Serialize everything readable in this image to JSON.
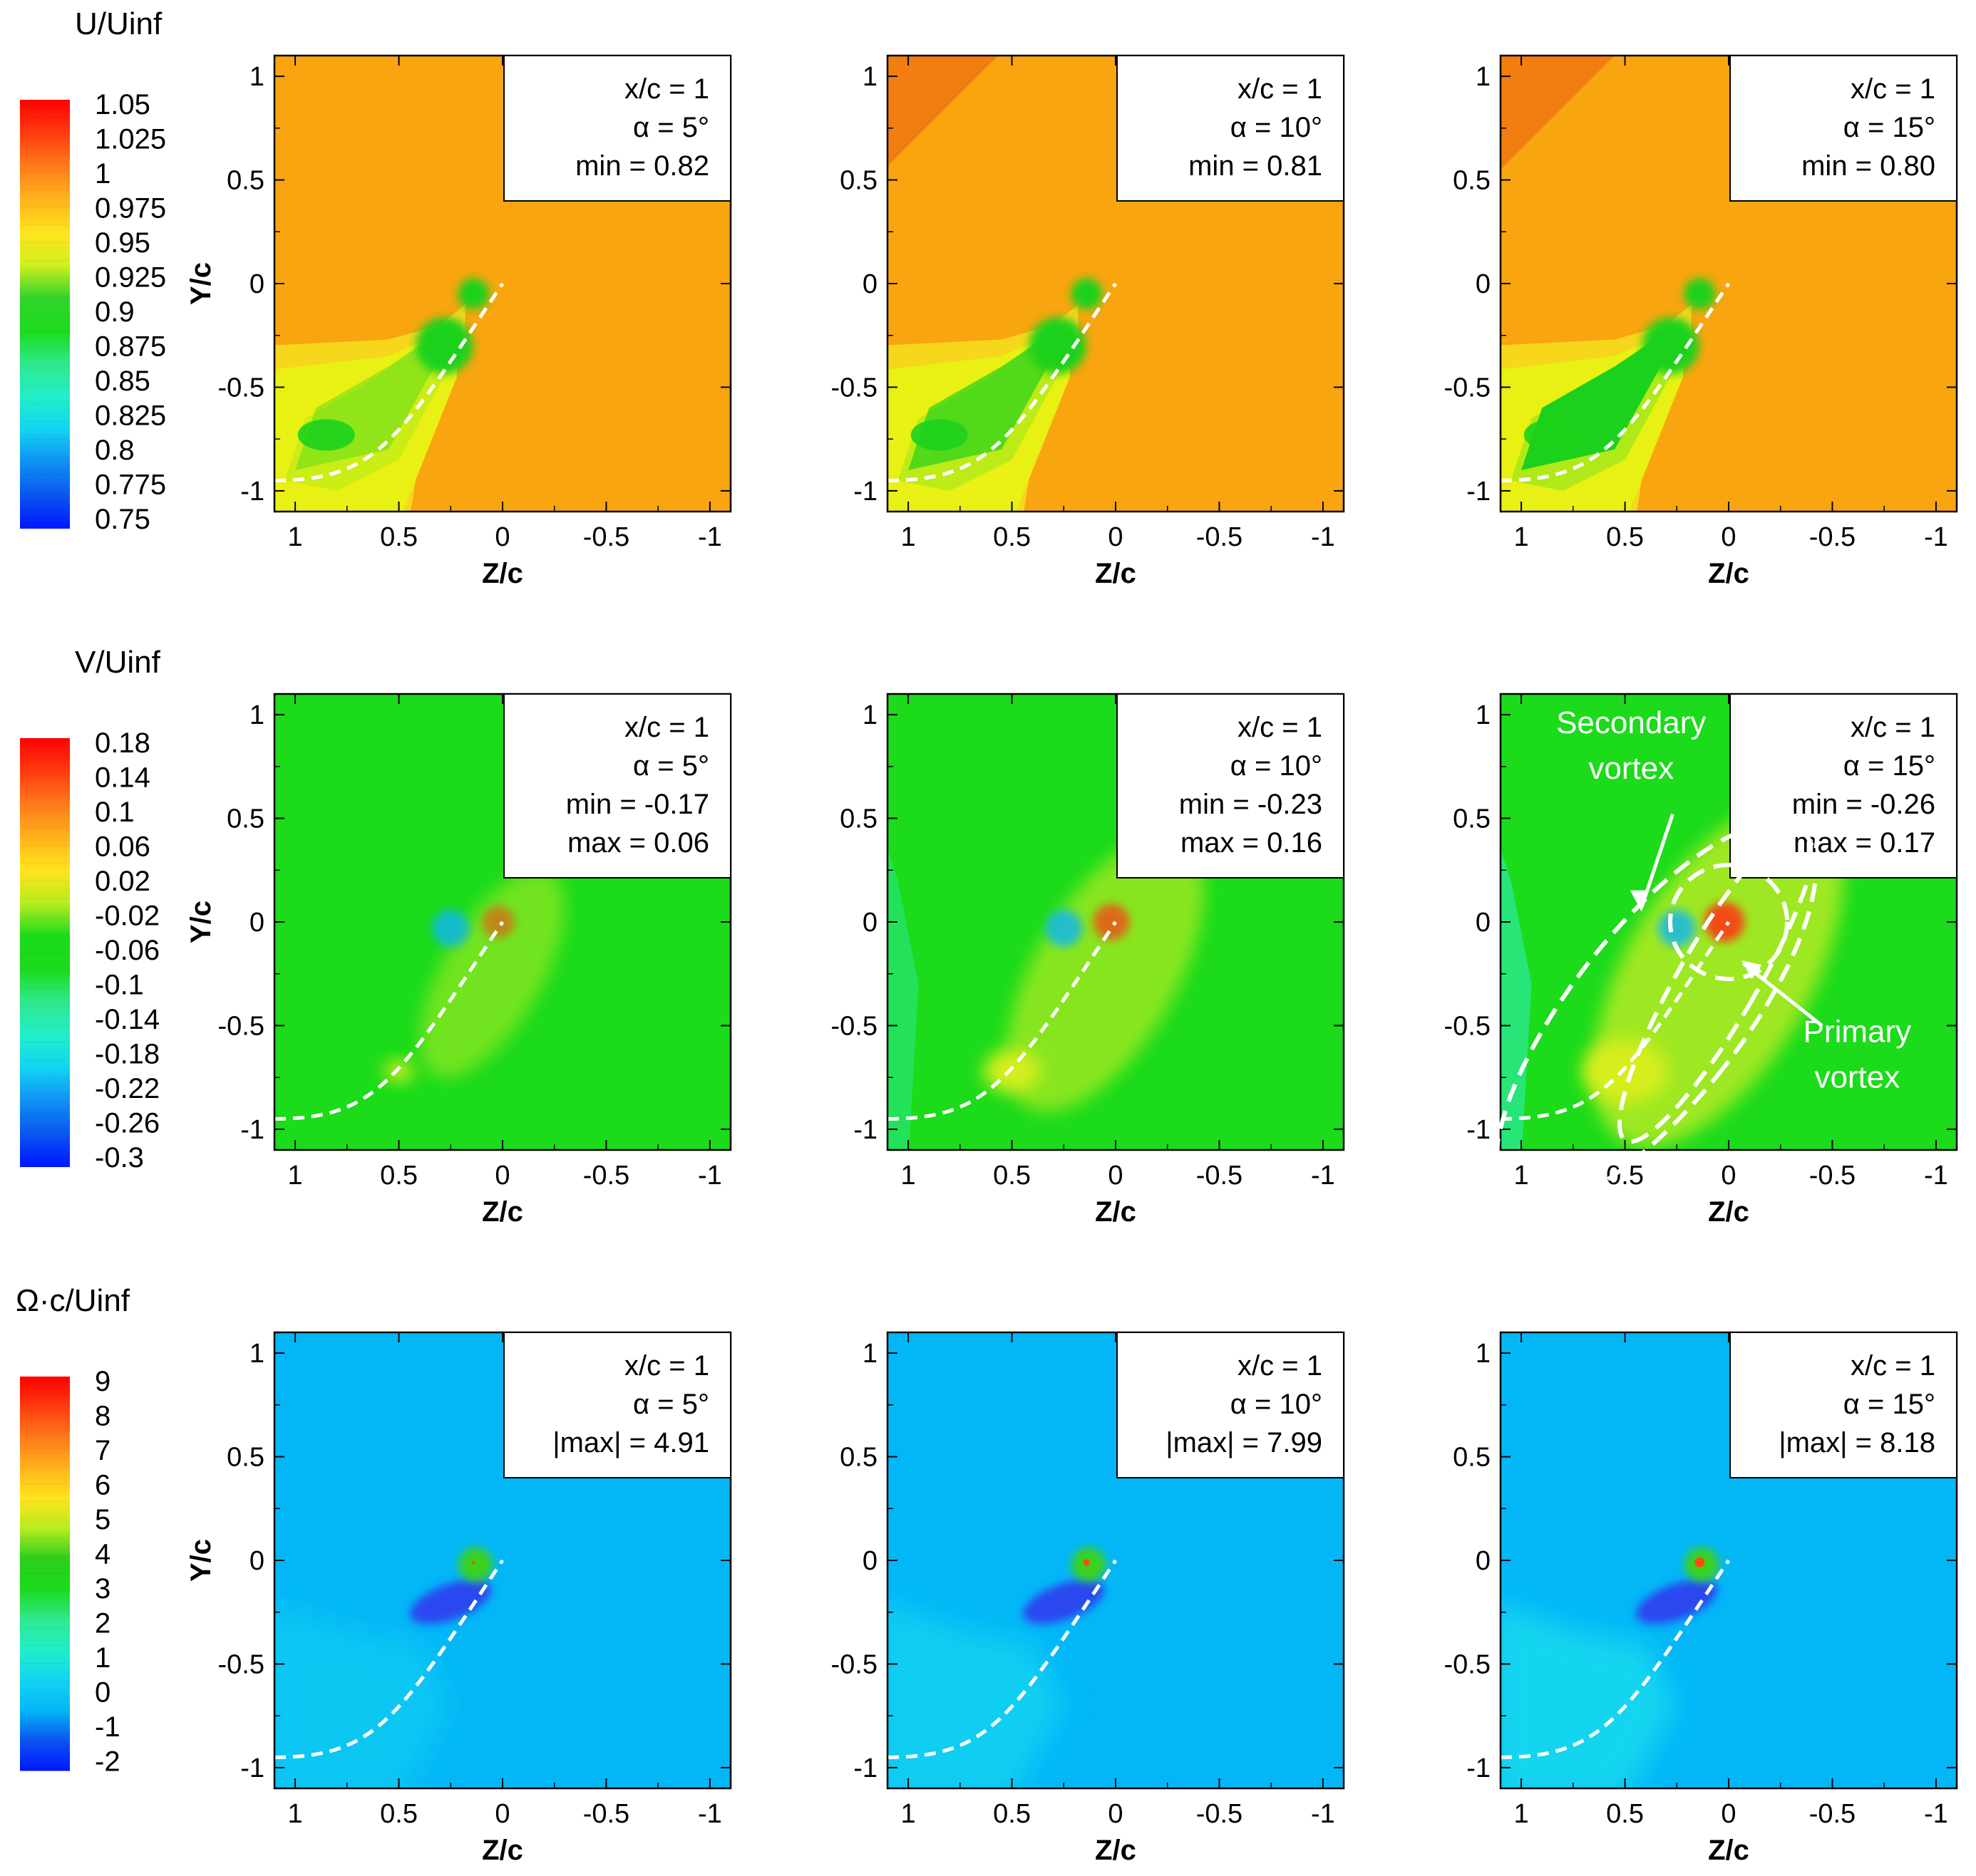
{
  "figure": {
    "rows": 3,
    "cols": 3
  },
  "rows": [
    {
      "variable": "U/Uinf",
      "colorbar_ticks": [
        "1.05",
        "1.025",
        "1",
        "0.975",
        "0.95",
        "0.925",
        "0.9",
        "0.875",
        "0.85",
        "0.825",
        "0.8",
        "0.775",
        "0.75"
      ],
      "colors": {
        "background": "#f9a50f",
        "lower_plume": "#e9f013",
        "core": "#1cd11c",
        "core_light": "#a6e81a",
        "edge": "#f6d71c"
      }
    },
    {
      "variable": "V/Uinf",
      "colorbar_ticks": [
        "0.18",
        "0.14",
        "0.1",
        "0.06",
        "0.02",
        "-0.02",
        "-0.06",
        "-0.1",
        "-0.14",
        "-0.18",
        "-0.22",
        "-0.26",
        "-0.3"
      ],
      "colors": {
        "background": "#1bdb1b",
        "plume": "#9de822",
        "plume_core": "#d6ee1a",
        "side": "#2ee9a0",
        "neg": "#0fb5f5",
        "pos": "#f24c14"
      }
    },
    {
      "variable": "Ω·c/Uinf",
      "colorbar_ticks": [
        "9",
        "8",
        "7",
        "6",
        "5",
        "4",
        "3",
        "2",
        "1",
        "0",
        "-1",
        "-2"
      ],
      "colors": {
        "background": "#03b7f7",
        "plume": "#1fe3ec",
        "neg": "#2a46f0",
        "pos": "#3bd11a"
      }
    }
  ],
  "annotations": {
    "secondary": "Secondary vortex",
    "primary": "Primary vortex"
  },
  "chart_data": [
    {
      "type": "heatmap",
      "row": 0,
      "col": 0,
      "variable": "U/Uinf",
      "xlabel": "Z/c",
      "ylabel": "Y/c",
      "xlim": [
        1.1,
        -1.1
      ],
      "ylim": [
        -1.1,
        1.1
      ],
      "xticks": [
        "1",
        "0.5",
        "0",
        "-0.5",
        "-1"
      ],
      "yticks": [
        "1",
        "0.5",
        "0",
        "-0.5",
        "-1"
      ],
      "info": [
        "x/c = 1",
        "α = 5°",
        "min = 0.82"
      ],
      "alpha": 5
    },
    {
      "type": "heatmap",
      "row": 0,
      "col": 1,
      "variable": "U/Uinf",
      "xlabel": "Z/c",
      "ylabel": "",
      "xlim": [
        1.1,
        -1.1
      ],
      "ylim": [
        -1.1,
        1.1
      ],
      "xticks": [
        "1",
        "0.5",
        "0",
        "-0.5",
        "-1"
      ],
      "yticks": [
        "1",
        "0.5",
        "0",
        "-0.5",
        "-1"
      ],
      "info": [
        "x/c = 1",
        "α = 10°",
        "min = 0.81"
      ],
      "alpha": 10
    },
    {
      "type": "heatmap",
      "row": 0,
      "col": 2,
      "variable": "U/Uinf",
      "xlabel": "Z/c",
      "ylabel": "",
      "xlim": [
        1.1,
        -1.1
      ],
      "ylim": [
        -1.1,
        1.1
      ],
      "xticks": [
        "1",
        "0.5",
        "0",
        "-0.5",
        "-1"
      ],
      "yticks": [
        "1",
        "0.5",
        "0",
        "-0.5",
        "-1"
      ],
      "info": [
        "x/c = 1",
        "α = 15°",
        "min = 0.80"
      ],
      "alpha": 15
    },
    {
      "type": "heatmap",
      "row": 1,
      "col": 0,
      "variable": "V/Uinf",
      "xlabel": "Z/c",
      "ylabel": "Y/c",
      "xlim": [
        1.1,
        -1.1
      ],
      "ylim": [
        -1.1,
        1.1
      ],
      "xticks": [
        "1",
        "0.5",
        "0",
        "-0.5",
        "-1"
      ],
      "yticks": [
        "1",
        "0.5",
        "0",
        "-0.5",
        "-1"
      ],
      "info": [
        "x/c = 1",
        "α = 5°",
        "min = -0.17",
        "max = 0.06"
      ],
      "alpha": 5
    },
    {
      "type": "heatmap",
      "row": 1,
      "col": 1,
      "variable": "V/Uinf",
      "xlabel": "Z/c",
      "ylabel": "",
      "xlim": [
        1.1,
        -1.1
      ],
      "ylim": [
        -1.1,
        1.1
      ],
      "xticks": [
        "1",
        "0.5",
        "0",
        "-0.5",
        "-1"
      ],
      "yticks": [
        "1",
        "0.5",
        "0",
        "-0.5",
        "-1"
      ],
      "info": [
        "x/c = 1",
        "α = 10°",
        "min = -0.23",
        "max = 0.16"
      ],
      "alpha": 10
    },
    {
      "type": "heatmap",
      "row": 1,
      "col": 2,
      "variable": "V/Uinf",
      "xlabel": "Z/c",
      "ylabel": "",
      "xlim": [
        1.1,
        -1.1
      ],
      "ylim": [
        -1.1,
        1.1
      ],
      "xticks": [
        "1",
        "0.5",
        "0",
        "-0.5",
        "-1"
      ],
      "yticks": [
        "1",
        "0.5",
        "0",
        "-0.5",
        "-1"
      ],
      "info": [
        "x/c = 1",
        "α = 15°",
        "min = -0.26",
        "max = 0.17"
      ],
      "alpha": 15
    },
    {
      "type": "heatmap",
      "row": 2,
      "col": 0,
      "variable": "Ω·c/Uinf",
      "xlabel": "Z/c",
      "ylabel": "Y/c",
      "xlim": [
        1.1,
        -1.1
      ],
      "ylim": [
        -1.1,
        1.1
      ],
      "xticks": [
        "1",
        "0.5",
        "0",
        "-0.5",
        "-1"
      ],
      "yticks": [
        "1",
        "0.5",
        "0",
        "-0.5",
        "-1"
      ],
      "info": [
        "x/c = 1",
        "α = 5°",
        "|max| = 4.91"
      ],
      "alpha": 5
    },
    {
      "type": "heatmap",
      "row": 2,
      "col": 1,
      "variable": "Ω·c/Uinf",
      "xlabel": "Z/c",
      "ylabel": "",
      "xlim": [
        1.1,
        -1.1
      ],
      "ylim": [
        -1.1,
        1.1
      ],
      "xticks": [
        "1",
        "0.5",
        "0",
        "-0.5",
        "-1"
      ],
      "yticks": [
        "1",
        "0.5",
        "0",
        "-0.5",
        "-1"
      ],
      "info": [
        "x/c = 1",
        "α = 10°",
        "|max| = 7.99"
      ],
      "alpha": 10
    },
    {
      "type": "heatmap",
      "row": 2,
      "col": 2,
      "variable": "Ω·c/Uinf",
      "xlabel": "Z/c",
      "ylabel": "",
      "xlim": [
        1.1,
        -1.1
      ],
      "ylim": [
        -1.1,
        1.1
      ],
      "xticks": [
        "1",
        "0.5",
        "0",
        "-0.5",
        "-1"
      ],
      "yticks": [
        "1",
        "0.5",
        "0",
        "-0.5",
        "-1"
      ],
      "info": [
        "x/c = 1",
        "α = 15°",
        "|max| = 8.18"
      ],
      "alpha": 15
    }
  ]
}
